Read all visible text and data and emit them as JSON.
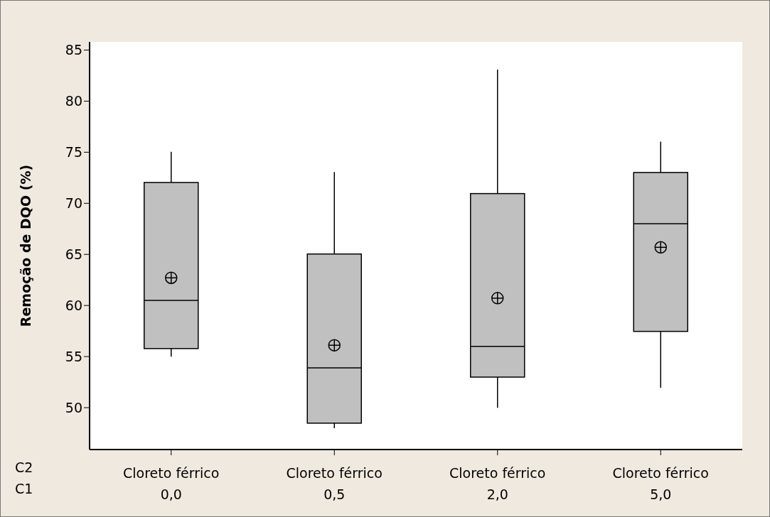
{
  "chart_data": {
    "type": "box",
    "ylabel": "Remoção de DQO (%)",
    "categories": [
      "Cloreto férrico\n0,0",
      "Cloreto férrico\n0,5",
      "Cloreto férrico\n2,0",
      "Cloreto férrico\n5,0"
    ],
    "boxes": [
      {
        "low": 55,
        "q1": 55.8,
        "median": 60.5,
        "q3": 72,
        "high": 75,
        "mean": 62.7
      },
      {
        "low": 48,
        "q1": 48.5,
        "median": 53.9,
        "q3": 65,
        "high": 73,
        "mean": 56.1
      },
      {
        "low": 50,
        "q1": 53,
        "median": 56,
        "q3": 70.9,
        "high": 83,
        "mean": 60.7
      },
      {
        "low": 52,
        "q1": 57.5,
        "median": 68,
        "q3": 73,
        "high": 76,
        "mean": 65.7
      }
    ],
    "color": "#c0c0c0",
    "ylim": [
      45.9,
      85.8
    ],
    "yticks": [
      50,
      55,
      60,
      65,
      70,
      75,
      80,
      85
    ],
    "annotations": [
      "C2",
      "C1"
    ]
  }
}
